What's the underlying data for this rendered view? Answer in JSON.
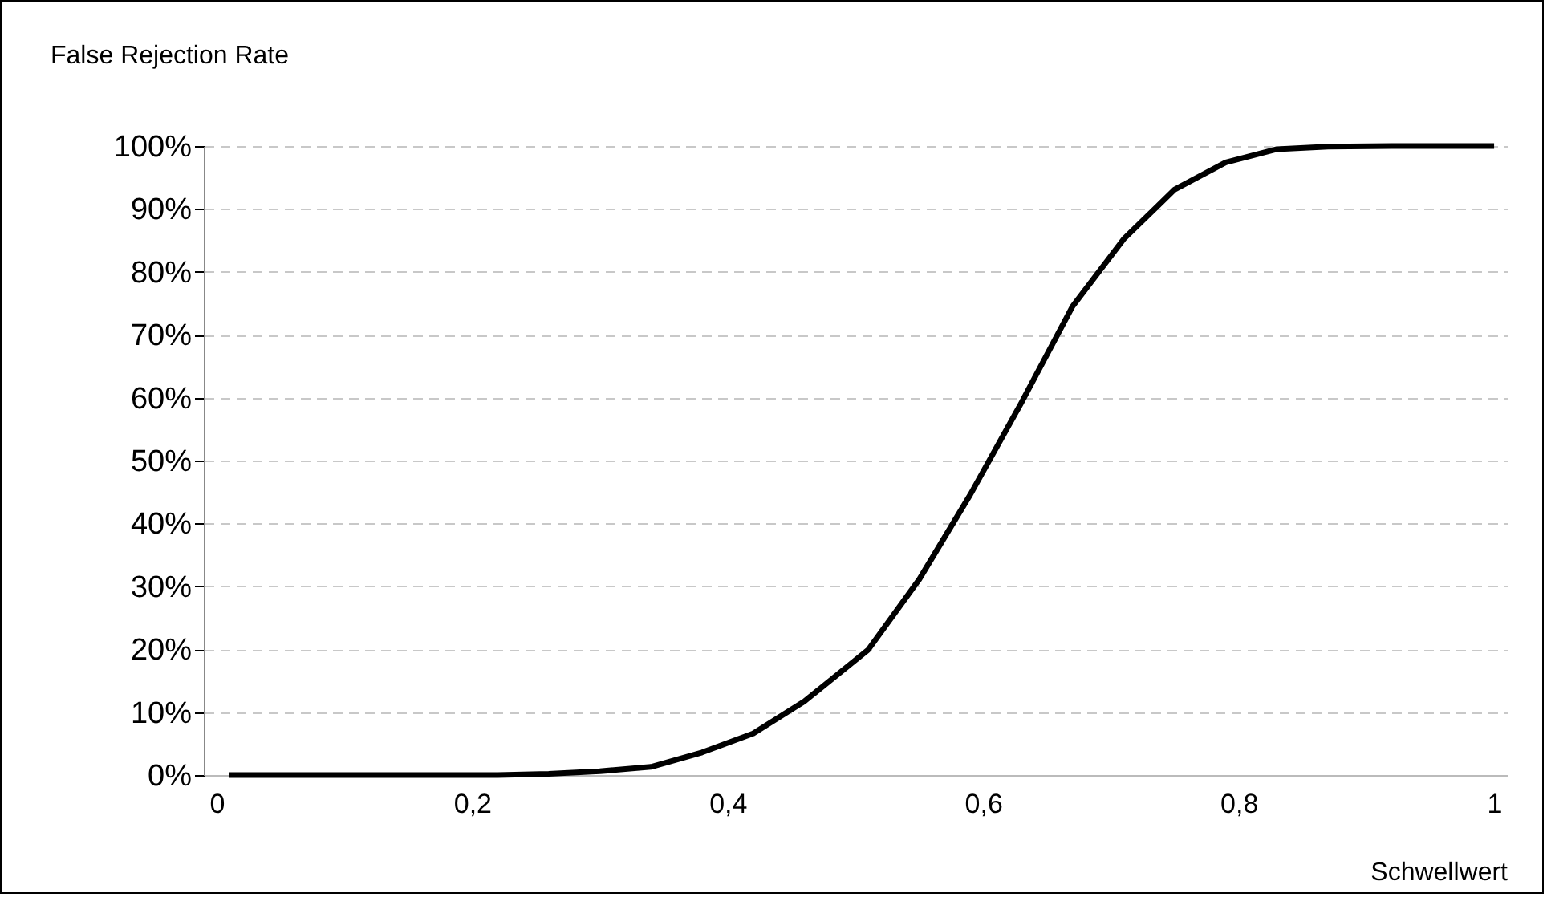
{
  "chart_data": {
    "type": "line",
    "xlabel": "Schwellwert",
    "ylabel": "False Rejection Rate",
    "x": [
      0.01,
      0.06,
      0.1,
      0.14,
      0.18,
      0.22,
      0.26,
      0.3,
      0.34,
      0.38,
      0.42,
      0.46,
      0.51,
      0.55,
      0.59,
      0.63,
      0.67,
      0.71,
      0.75,
      0.79,
      0.83,
      0.87,
      0.92,
      0.96,
      1.0
    ],
    "series": [
      {
        "color": "#000000",
        "values": [
          0,
          0,
          0,
          0,
          0,
          0,
          0.2,
          0.6,
          1.3,
          3.6,
          6.6,
          11.7,
          19.9,
          31.1,
          44.6,
          59.2,
          74.5,
          85.2,
          93.1,
          97.4,
          99.5,
          99.9,
          100,
          100,
          100
        ]
      }
    ],
    "xlim": [
      -0.01,
      1.01
    ],
    "xticks": [
      0,
      {
        "value": 0.2,
        "label": "0,2"
      },
      {
        "value": 0.4,
        "label": "0,4"
      },
      {
        "value": 0.6,
        "label": "0,6"
      },
      {
        "value": 0.8,
        "label": "0,8"
      },
      1
    ],
    "ylim": [
      0,
      100
    ],
    "yticks": [
      {
        "value": 0,
        "label": "0%"
      },
      {
        "value": 10,
        "label": "10%"
      },
      {
        "value": 20,
        "label": "20%"
      },
      {
        "value": 30,
        "label": "30%"
      },
      {
        "value": 40,
        "label": "40%"
      },
      {
        "value": 50,
        "label": "50%"
      },
      {
        "value": 60,
        "label": "60%"
      },
      {
        "value": 70,
        "label": "70%"
      },
      {
        "value": 80,
        "label": "80%"
      },
      {
        "value": 90,
        "label": "90%"
      },
      {
        "value": 100,
        "label": "100%"
      }
    ],
    "grid": "y",
    "line_style": "solid",
    "marker": "none",
    "legend": false
  }
}
